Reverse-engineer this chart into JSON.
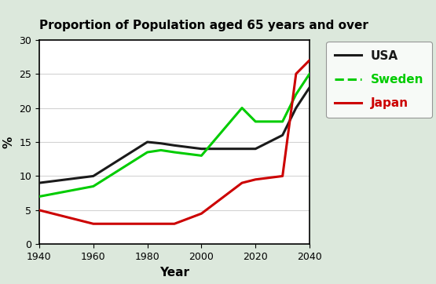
{
  "title": "Proportion of Population aged 65 years and over",
  "xlabel": "Year",
  "ylabel": "%",
  "years": [
    1940,
    1960,
    1980,
    1985,
    1990,
    2000,
    2015,
    2020,
    2030,
    2035,
    2040
  ],
  "usa": [
    9,
    10,
    15,
    14.8,
    14.5,
    14,
    14,
    14,
    16,
    20,
    23
  ],
  "sweden": [
    7,
    8.5,
    13.5,
    13.8,
    13.5,
    13,
    20,
    18,
    18,
    22,
    25
  ],
  "japan": [
    5,
    3,
    3,
    3,
    3,
    4.5,
    9,
    9.5,
    10,
    25,
    27
  ],
  "usa_color": "#1a1a1a",
  "sweden_color": "#00cc00",
  "japan_color": "#cc0000",
  "ylim": [
    0,
    30
  ],
  "xlim": [
    1940,
    2040
  ],
  "xticks": [
    1940,
    1960,
    1980,
    2000,
    2020,
    2040
  ],
  "yticks": [
    0,
    5,
    10,
    15,
    20,
    25,
    30
  ],
  "background_color": "#ffffff",
  "outer_background": "#dce8dc",
  "title_fontsize": 11,
  "axis_label_fontsize": 11,
  "tick_fontsize": 9,
  "legend_labels": [
    "USA",
    "Sweden",
    "Japan"
  ],
  "legend_colors": [
    "#1a1a1a",
    "#00cc00",
    "#cc0000"
  ],
  "legend_fontsize": 11
}
